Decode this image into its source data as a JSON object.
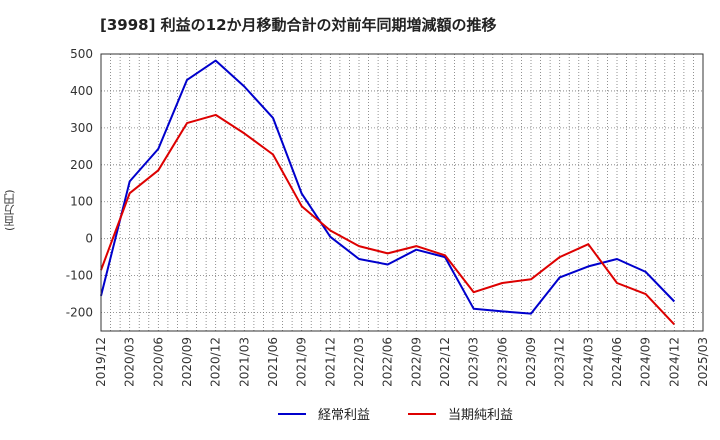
{
  "chart_data": {
    "type": "line",
    "title": "[3998]  利益の12か月移動合計の対前年同期増減額の推移",
    "ylabel": "(百万円)",
    "xlabel": "",
    "ylim": [
      -250,
      500
    ],
    "yticks": [
      500,
      400,
      300,
      200,
      100,
      0,
      -100,
      -200
    ],
    "categories": [
      "2019/12",
      "2020/03",
      "2020/06",
      "2020/09",
      "2020/12",
      "2021/03",
      "2021/06",
      "2021/09",
      "2021/12",
      "2022/03",
      "2022/06",
      "2022/09",
      "2022/12",
      "2023/03",
      "2023/06",
      "2023/09",
      "2023/12",
      "2024/03",
      "2024/06",
      "2024/09",
      "2024/12",
      "2025/03"
    ],
    "series": [
      {
        "name": "経常利益",
        "color": "#0000cc",
        "values": [
          -155,
          155,
          243,
          430,
          482,
          412,
          327,
          122,
          5,
          -55,
          -70,
          -30,
          -50,
          -190,
          -197,
          -203,
          -105,
          -75,
          -55,
          -90,
          -170,
          null
        ]
      },
      {
        "name": "当期純利益",
        "color": "#dd0000",
        "values": [
          -85,
          123,
          185,
          313,
          335,
          285,
          228,
          88,
          22,
          -20,
          -40,
          -20,
          -45,
          -145,
          -120,
          -110,
          -50,
          -15,
          -120,
          -150,
          -232,
          null
        ]
      }
    ],
    "grid": true,
    "legend_position": "bottom-center"
  }
}
